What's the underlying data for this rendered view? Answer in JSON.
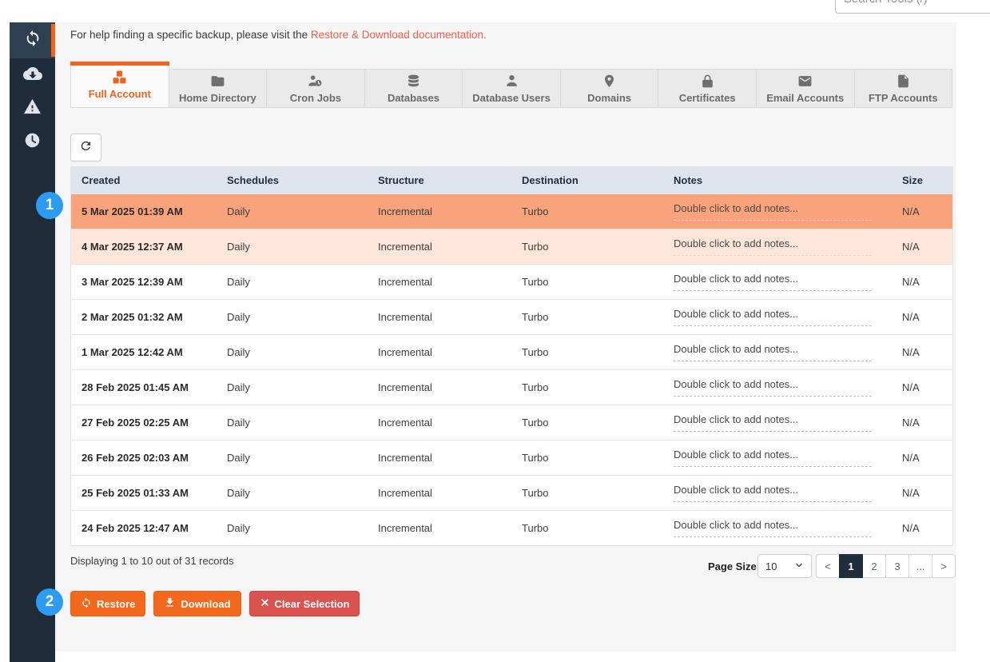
{
  "header": {
    "search_placeholder": "Search Tools (/)"
  },
  "sidebar": {
    "items": [
      {
        "name": "restore-download",
        "icon": "sync-icon",
        "active": true
      },
      {
        "name": "download-queue",
        "icon": "cloud-download-icon",
        "active": false
      },
      {
        "name": "alerts",
        "icon": "warning-icon",
        "active": false
      },
      {
        "name": "snapshots",
        "icon": "clock-icon",
        "active": false
      }
    ]
  },
  "help": {
    "prefix": "For help finding a specific backup, please visit the ",
    "link": "Restore & Download documentation."
  },
  "tabs": [
    {
      "label": "Full Account",
      "icon": "cubes-icon",
      "active": true
    },
    {
      "label": "Home Directory",
      "icon": "folder-icon",
      "active": false
    },
    {
      "label": "Cron Jobs",
      "icon": "user-clock-icon",
      "active": false
    },
    {
      "label": "Databases",
      "icon": "database-icon",
      "active": false
    },
    {
      "label": "Database Users",
      "icon": "database-user-icon",
      "active": false
    },
    {
      "label": "Domains",
      "icon": "map-pin-icon",
      "active": false
    },
    {
      "label": "Certificates",
      "icon": "lock-icon",
      "active": false
    },
    {
      "label": "Email Accounts",
      "icon": "envelope-icon",
      "active": false
    },
    {
      "label": "FTP Accounts",
      "icon": "file-icon",
      "active": false
    }
  ],
  "table": {
    "columns": [
      "Created",
      "Schedules",
      "Structure",
      "Destination",
      "Notes",
      "Size"
    ],
    "rows": [
      {
        "created": "5 Mar 2025 01:39 AM",
        "schedules": "Daily",
        "structure": "Incremental",
        "destination": "Turbo",
        "notes": "Double click to add notes...",
        "size": "N/A",
        "highlight": "selected-strong"
      },
      {
        "created": "4 Mar 2025 12:37 AM",
        "schedules": "Daily",
        "structure": "Incremental",
        "destination": "Turbo",
        "notes": "Double click to add notes...",
        "size": "N/A",
        "highlight": "selected-light"
      },
      {
        "created": "3 Mar 2025 12:39 AM",
        "schedules": "Daily",
        "structure": "Incremental",
        "destination": "Turbo",
        "notes": "Double click to add notes...",
        "size": "N/A",
        "highlight": "none"
      },
      {
        "created": "2 Mar 2025 01:32 AM",
        "schedules": "Daily",
        "structure": "Incremental",
        "destination": "Turbo",
        "notes": "Double click to add notes...",
        "size": "N/A",
        "highlight": "none"
      },
      {
        "created": "1 Mar 2025 12:42 AM",
        "schedules": "Daily",
        "structure": "Incremental",
        "destination": "Turbo",
        "notes": "Double click to add notes...",
        "size": "N/A",
        "highlight": "none"
      },
      {
        "created": "28 Feb 2025 01:45 AM",
        "schedules": "Daily",
        "structure": "Incremental",
        "destination": "Turbo",
        "notes": "Double click to add notes...",
        "size": "N/A",
        "highlight": "none"
      },
      {
        "created": "27 Feb 2025 02:25 AM",
        "schedules": "Daily",
        "structure": "Incremental",
        "destination": "Turbo",
        "notes": "Double click to add notes...",
        "size": "N/A",
        "highlight": "none"
      },
      {
        "created": "26 Feb 2025 02:03 AM",
        "schedules": "Daily",
        "structure": "Incremental",
        "destination": "Turbo",
        "notes": "Double click to add notes...",
        "size": "N/A",
        "highlight": "none"
      },
      {
        "created": "25 Feb 2025 01:33 AM",
        "schedules": "Daily",
        "structure": "Incremental",
        "destination": "Turbo",
        "notes": "Double click to add notes...",
        "size": "N/A",
        "highlight": "none"
      },
      {
        "created": "24 Feb 2025 12:47 AM",
        "schedules": "Daily",
        "structure": "Incremental",
        "destination": "Turbo",
        "notes": "Double click to add notes...",
        "size": "N/A",
        "highlight": "none"
      }
    ]
  },
  "footer": {
    "summary": "Displaying 1 to 10 out of 31 records",
    "page_size_label": "Page Size",
    "page_size_value": "10",
    "pager": [
      {
        "label": "<",
        "active": false
      },
      {
        "label": "1",
        "active": true
      },
      {
        "label": "2",
        "active": false
      },
      {
        "label": "3",
        "active": false
      },
      {
        "label": "...",
        "active": false
      },
      {
        "label": ">",
        "active": false
      }
    ]
  },
  "actions": [
    {
      "label": "Restore",
      "icon": "sync-icon",
      "style": "orange"
    },
    {
      "label": "Download",
      "icon": "download-icon",
      "style": "orange"
    },
    {
      "label": "Clear Selection",
      "icon": "x-icon",
      "style": "red"
    }
  ],
  "annotations": [
    {
      "number": "1"
    },
    {
      "number": "2"
    }
  ],
  "colors": {
    "accent_orange": "#f4611d",
    "button_orange": "#f2691e",
    "button_red": "#d9534f",
    "selected_row_strong": "#f9a37d",
    "selected_row_light": "#fce6da",
    "sidebar_bg": "#1f2c39",
    "table_header_bg": "#dee4ee",
    "badge_blue": "#2b9cf2",
    "link": "#ef604d"
  }
}
